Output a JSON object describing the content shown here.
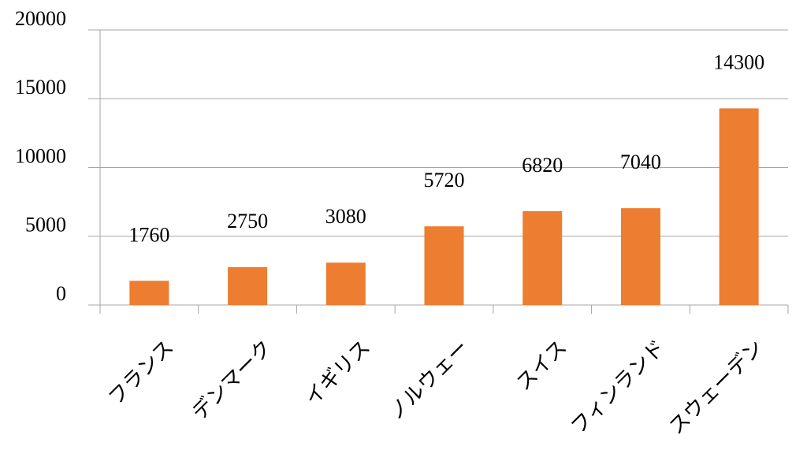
{
  "chart_data": {
    "type": "bar",
    "categories": [
      "フランス",
      "デンマーク",
      "イギリス",
      "ノルウェー",
      "スイス",
      "フィンランド",
      "スウェーデン"
    ],
    "values": [
      1760,
      2750,
      3080,
      5720,
      6820,
      7040,
      14300
    ],
    "color": "#ed7d31",
    "ylim": [
      0,
      20000
    ],
    "yticks": [
      0,
      5000,
      10000,
      15000,
      20000
    ],
    "grid": true
  }
}
